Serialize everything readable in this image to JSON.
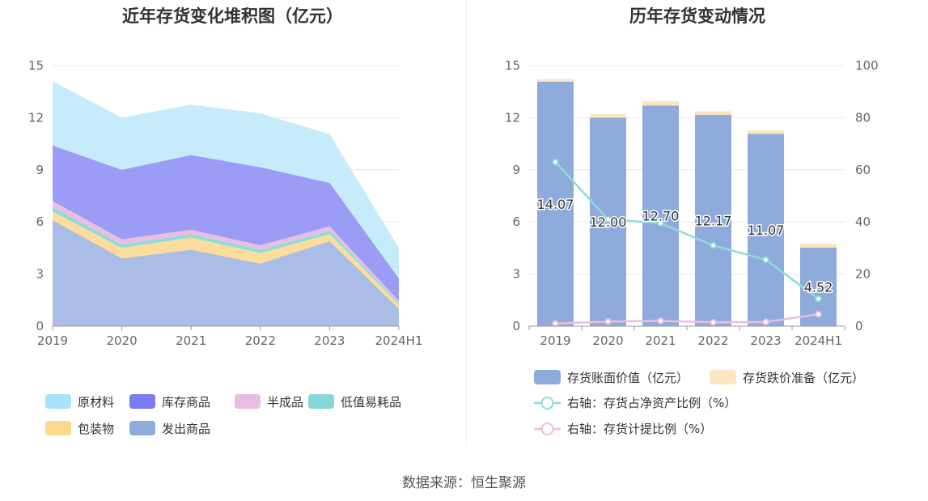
{
  "source": "数据来源：恒生聚源",
  "chart_data": [
    {
      "type": "area",
      "stacked": true,
      "title": "近年存货变化堆积图（亿元）",
      "categories": [
        "2019",
        "2020",
        "2021",
        "2022",
        "2023",
        "2024H1"
      ],
      "ylim": [
        0,
        15
      ],
      "yticks": [
        "0",
        "3",
        "6",
        "9",
        "12",
        "15"
      ],
      "grid": true,
      "legend_position": "bottom",
      "series": [
        {
          "name": "发出商品",
          "color": "#a9bde6",
          "values": [
            6.1,
            3.9,
            4.4,
            3.6,
            4.9,
            1.0
          ]
        },
        {
          "name": "包装物",
          "color": "#fddd9c",
          "values": [
            0.5,
            0.6,
            0.7,
            0.6,
            0.4,
            0.25
          ]
        },
        {
          "name": "低值易耗品",
          "color": "#8fdcd9",
          "values": [
            0.25,
            0.2,
            0.2,
            0.2,
            0.2,
            0.1
          ]
        },
        {
          "name": "半成品",
          "color": "#ebbee0",
          "values": [
            0.35,
            0.3,
            0.25,
            0.25,
            0.25,
            0.1
          ]
        },
        {
          "name": "库存商品",
          "color": "#9b9cf6",
          "values": [
            3.2,
            4.0,
            4.3,
            4.5,
            2.5,
            1.3
          ]
        },
        {
          "name": "原材料",
          "color": "#c6ecfc",
          "values": [
            3.7,
            3.0,
            2.9,
            3.1,
            2.8,
            1.75
          ]
        }
      ],
      "legend": [
        {
          "name": "原材料",
          "color": "#a8e3fb"
        },
        {
          "name": "库存商品",
          "color": "#7a7cf3"
        },
        {
          "name": "半成品",
          "color": "#e8bde0"
        },
        {
          "name": "低值易耗品",
          "color": "#86d8d8"
        },
        {
          "name": "包装物",
          "color": "#fdd98e"
        },
        {
          "name": "发出商品",
          "color": "#8eabdc"
        }
      ]
    },
    {
      "type": "bar",
      "title": "历年存货变动情况",
      "categories": [
        "2019",
        "2020",
        "2021",
        "2022",
        "2023",
        "2024H1"
      ],
      "ylim": [
        0,
        15
      ],
      "yticks": [
        "0",
        "3",
        "6",
        "9",
        "12",
        "15"
      ],
      "y2lim": [
        0,
        100
      ],
      "y2ticks": [
        "0",
        "20",
        "40",
        "60",
        "80",
        "100"
      ],
      "grid": true,
      "legend_position": "bottom",
      "bars": [
        {
          "name": "存货账面价值（亿元）",
          "color": "#8eabdc",
          "values": [
            14.07,
            12.0,
            12.7,
            12.17,
            11.07,
            4.52
          ]
        },
        {
          "name": "存货跌价准备（亿元）",
          "color": "#fde6bf",
          "values": [
            0.15,
            0.2,
            0.25,
            0.2,
            0.2,
            0.22
          ]
        }
      ],
      "bar_labels": [
        "14.07",
        "12.00",
        "12.70",
        "12.17",
        "11.07",
        "4.52"
      ],
      "lines": [
        {
          "name": "右轴：存货占净资产比例（%）",
          "color": "#8fdcd9",
          "axis": "right",
          "values": [
            63,
            41,
            39.5,
            31,
            25.5,
            10.5
          ]
        },
        {
          "name": "右轴：存货计提比例（%）",
          "color": "#ebbee0",
          "axis": "right",
          "values": [
            1,
            1.8,
            2,
            1.5,
            1.6,
            4.6
          ]
        }
      ]
    }
  ]
}
